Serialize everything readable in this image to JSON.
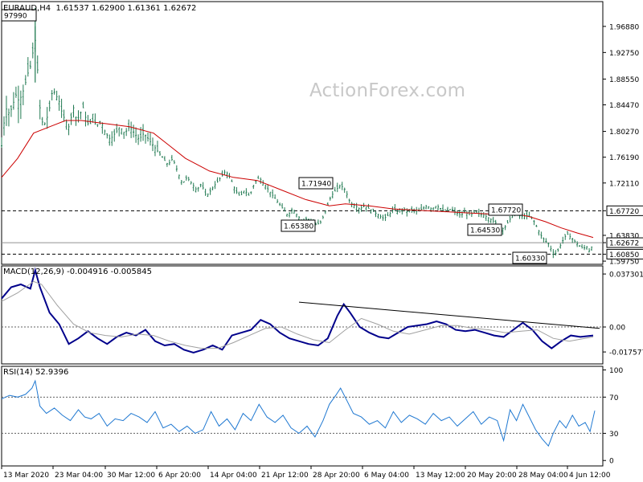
{
  "header": {
    "symbol": "EURAUD,H4",
    "ohlc": "1.61537 1.62900 1.61361 1.62672",
    "macd": "MACD(12,26,9) -0.004916 -0.005845",
    "rsi": "RSI(14) 52.9396"
  },
  "watermark": "ActionForex.com",
  "chart_data": [
    {
      "type": "candlestick",
      "title": "EURAUD,H4",
      "y_ticks": [
        "1.96880",
        "1.92750",
        "1.88550",
        "1.84470",
        "1.80270",
        "1.76190",
        "1.72110",
        "1.67720",
        "1.63830",
        "1.62672",
        "1.60850",
        "1.59750"
      ],
      "ylim": [
        1.5925,
        2.008
      ],
      "current_price": "1.62672",
      "levels": [
        {
          "value": 1.6772,
          "label": "1.67720",
          "style": "dashed"
        },
        {
          "value": 1.6085,
          "label": "1.60850",
          "style": "dashed"
        },
        {
          "value": 1.62672,
          "label": "1.62672",
          "style": "solid"
        }
      ],
      "annotations": [
        {
          "label": "97990",
          "value": 1.9799,
          "x": "13 Mar 2020"
        },
        {
          "label": "1.71940",
          "value": 1.7194,
          "x": "30 Apr 2020"
        },
        {
          "label": "1.65380",
          "value": 1.6538,
          "x": "27 Apr 2020"
        },
        {
          "label": "1.67720",
          "value": 1.6772,
          "x": "28 May 2020"
        },
        {
          "label": "1.64530",
          "value": 1.6453,
          "x": "27 May 2020"
        },
        {
          "label": "1.60330",
          "value": 1.6033,
          "x": "1 Jun 2020"
        }
      ],
      "price_path": [
        [
          0,
          1.78
        ],
        [
          5,
          1.84
        ],
        [
          10,
          1.83
        ],
        [
          18,
          1.86
        ],
        [
          22,
          1.85
        ],
        [
          28,
          1.87
        ],
        [
          34,
          1.9
        ],
        [
          38,
          1.91
        ],
        [
          41,
          1.96
        ],
        [
          44,
          1.92
        ],
        [
          48,
          1.84
        ],
        [
          52,
          1.81
        ],
        [
          56,
          1.82
        ],
        [
          60,
          1.84
        ],
        [
          64,
          1.87
        ],
        [
          68,
          1.86
        ],
        [
          72,
          1.85
        ],
        [
          76,
          1.83
        ],
        [
          80,
          1.82
        ],
        [
          84,
          1.81
        ],
        [
          90,
          1.84
        ],
        [
          94,
          1.82
        ],
        [
          98,
          1.83
        ],
        [
          102,
          1.84
        ],
        [
          106,
          1.82
        ],
        [
          110,
          1.81
        ],
        [
          114,
          1.83
        ],
        [
          118,
          1.81
        ],
        [
          124,
          1.82
        ],
        [
          130,
          1.8
        ],
        [
          136,
          1.79
        ],
        [
          142,
          1.8
        ],
        [
          148,
          1.81
        ],
        [
          154,
          1.8
        ],
        [
          160,
          1.81
        ],
        [
          166,
          1.8
        ],
        [
          172,
          1.79
        ],
        [
          178,
          1.8
        ],
        [
          184,
          1.79
        ],
        [
          190,
          1.78
        ],
        [
          196,
          1.77
        ],
        [
          202,
          1.76
        ],
        [
          208,
          1.75
        ],
        [
          214,
          1.76
        ],
        [
          220,
          1.74
        ],
        [
          226,
          1.72
        ],
        [
          232,
          1.73
        ],
        [
          238,
          1.72
        ],
        [
          244,
          1.71
        ],
        [
          250,
          1.72
        ],
        [
          256,
          1.7
        ],
        [
          262,
          1.71
        ],
        [
          268,
          1.72
        ],
        [
          274,
          1.73
        ],
        [
          280,
          1.74
        ],
        [
          286,
          1.73
        ],
        [
          292,
          1.71
        ],
        [
          298,
          1.7
        ],
        [
          304,
          1.71
        ],
        [
          310,
          1.7
        ],
        [
          316,
          1.72
        ],
        [
          322,
          1.73
        ],
        [
          328,
          1.72
        ],
        [
          334,
          1.71
        ],
        [
          340,
          1.7
        ],
        [
          346,
          1.69
        ],
        [
          352,
          1.68
        ],
        [
          358,
          1.67
        ],
        [
          364,
          1.68
        ],
        [
          370,
          1.67
        ],
        [
          376,
          1.66
        ],
        [
          382,
          1.665
        ],
        [
          388,
          1.66
        ],
        [
          394,
          1.655
        ],
        [
          400,
          1.66
        ],
        [
          406,
          1.68
        ],
        [
          412,
          1.7
        ],
        [
          418,
          1.71
        ],
        [
          424,
          1.718
        ],
        [
          430,
          1.71
        ],
        [
          436,
          1.69
        ],
        [
          442,
          1.685
        ],
        [
          448,
          1.68
        ],
        [
          454,
          1.685
        ],
        [
          460,
          1.68
        ],
        [
          466,
          1.675
        ],
        [
          472,
          1.67
        ],
        [
          478,
          1.665
        ],
        [
          484,
          1.67
        ],
        [
          490,
          1.68
        ],
        [
          496,
          1.675
        ],
        [
          502,
          1.68
        ],
        [
          508,
          1.675
        ],
        [
          514,
          1.68
        ],
        [
          520,
          1.675
        ],
        [
          526,
          1.68
        ],
        [
          532,
          1.685
        ],
        [
          538,
          1.68
        ],
        [
          544,
          1.685
        ],
        [
          550,
          1.68
        ],
        [
          556,
          1.675
        ],
        [
          562,
          1.68
        ],
        [
          568,
          1.675
        ],
        [
          574,
          1.67
        ],
        [
          580,
          1.675
        ],
        [
          586,
          1.67
        ],
        [
          592,
          1.675
        ],
        [
          598,
          1.672
        ],
        [
          604,
          1.67
        ],
        [
          610,
          1.665
        ],
        [
          616,
          1.66
        ],
        [
          622,
          1.655
        ],
        [
          628,
          1.648
        ],
        [
          634,
          1.66
        ],
        [
          640,
          1.672
        ],
        [
          646,
          1.67
        ],
        [
          652,
          1.668
        ],
        [
          658,
          1.67
        ],
        [
          664,
          1.665
        ],
        [
          668,
          1.655
        ],
        [
          672,
          1.645
        ],
        [
          676,
          1.635
        ],
        [
          680,
          1.63
        ],
        [
          684,
          1.625
        ],
        [
          688,
          1.615
        ],
        [
          692,
          1.608
        ],
        [
          696,
          1.615
        ],
        [
          700,
          1.625
        ],
        [
          704,
          1.635
        ],
        [
          708,
          1.64
        ],
        [
          712,
          1.635
        ],
        [
          716,
          1.63
        ],
        [
          720,
          1.625
        ],
        [
          724,
          1.62
        ],
        [
          728,
          1.618
        ],
        [
          732,
          1.62
        ],
        [
          736,
          1.612
        ],
        [
          740,
          1.627
        ]
      ],
      "ma_path": [
        [
          0,
          1.73
        ],
        [
          20,
          1.76
        ],
        [
          40,
          1.8
        ],
        [
          60,
          1.81
        ],
        [
          80,
          1.82
        ],
        [
          100,
          1.82
        ],
        [
          130,
          1.815
        ],
        [
          160,
          1.81
        ],
        [
          190,
          1.8
        ],
        [
          210,
          1.78
        ],
        [
          230,
          1.76
        ],
        [
          260,
          1.74
        ],
        [
          290,
          1.73
        ],
        [
          320,
          1.725
        ],
        [
          350,
          1.71
        ],
        [
          380,
          1.695
        ],
        [
          410,
          1.685
        ],
        [
          430,
          1.688
        ],
        [
          460,
          1.685
        ],
        [
          490,
          1.68
        ],
        [
          520,
          1.678
        ],
        [
          550,
          1.676
        ],
        [
          580,
          1.674
        ],
        [
          610,
          1.672
        ],
        [
          640,
          1.673
        ],
        [
          660,
          1.668
        ],
        [
          680,
          1.66
        ],
        [
          700,
          1.65
        ],
        [
          720,
          1.642
        ],
        [
          740,
          1.635
        ]
      ]
    },
    {
      "type": "line",
      "title": "MACD(12,26,9)",
      "y_ticks": [
        "0.037301",
        "0.00",
        "-0.017577"
      ],
      "ylim": [
        -0.026,
        0.043
      ],
      "series": [
        {
          "name": "MACD",
          "x": [
            0,
            12,
            24,
            36,
            42,
            48,
            60,
            72,
            84,
            96,
            108,
            120,
            132,
            144,
            156,
            168,
            180,
            192,
            204,
            216,
            228,
            240,
            252,
            264,
            276,
            288,
            300,
            312,
            324,
            336,
            348,
            360,
            372,
            384,
            396,
            408,
            420,
            428,
            436,
            448,
            460,
            472,
            484,
            496,
            508,
            520,
            532,
            544,
            556,
            568,
            580,
            592,
            604,
            616,
            628,
            640,
            652,
            664,
            676,
            688,
            700,
            712,
            724,
            740
          ],
          "values": [
            0.02,
            0.028,
            0.03,
            0.027,
            0.04,
            0.028,
            0.01,
            0.002,
            -0.012,
            -0.008,
            -0.003,
            -0.008,
            -0.012,
            -0.007,
            -0.004,
            -0.006,
            -0.002,
            -0.01,
            -0.013,
            -0.012,
            -0.016,
            -0.018,
            -0.016,
            -0.013,
            -0.016,
            -0.006,
            -0.004,
            -0.002,
            0.005,
            0.002,
            -0.004,
            -0.008,
            -0.01,
            -0.012,
            -0.013,
            -0.008,
            0.008,
            0.016,
            0.01,
            0.0,
            -0.004,
            -0.007,
            -0.008,
            -0.004,
            0.0,
            0.001,
            0.002,
            0.004,
            0.002,
            -0.002,
            -0.003,
            -0.002,
            -0.004,
            -0.006,
            -0.007,
            -0.002,
            0.003,
            -0.002,
            -0.01,
            -0.015,
            -0.01,
            -0.006,
            -0.007,
            -0.006
          ]
        },
        {
          "name": "Signal",
          "x": [
            0,
            20,
            40,
            50,
            70,
            90,
            110,
            130,
            150,
            170,
            190,
            210,
            230,
            250,
            270,
            290,
            310,
            330,
            350,
            370,
            390,
            410,
            430,
            450,
            470,
            490,
            510,
            530,
            550,
            570,
            590,
            610,
            630,
            650,
            670,
            690,
            710,
            740
          ],
          "values": [
            0.018,
            0.024,
            0.032,
            0.03,
            0.015,
            0.002,
            -0.004,
            -0.006,
            -0.007,
            -0.005,
            -0.006,
            -0.01,
            -0.013,
            -0.015,
            -0.015,
            -0.011,
            -0.006,
            -0.001,
            0.0,
            -0.005,
            -0.009,
            -0.011,
            -0.002,
            0.006,
            0.002,
            -0.003,
            -0.005,
            -0.002,
            0.001,
            0.001,
            -0.001,
            -0.002,
            -0.004,
            -0.003,
            -0.002,
            -0.008,
            -0.01,
            -0.007
          ]
        }
      ],
      "trendline": [
        [
          372,
          0.0175
        ],
        [
          748,
          -0.001
        ]
      ]
    },
    {
      "type": "line",
      "title": "RSI(14)",
      "y_ticks": [
        "100",
        "70",
        "30",
        "0"
      ],
      "ylim": [
        -6,
        104
      ],
      "levels": [
        70,
        30
      ],
      "series": [
        {
          "name": "RSI",
          "x": [
            0,
            10,
            20,
            30,
            38,
            42,
            48,
            56,
            66,
            76,
            86,
            96,
            104,
            112,
            122,
            132,
            142,
            152,
            162,
            172,
            182,
            192,
            202,
            212,
            222,
            232,
            242,
            252,
            262,
            272,
            282,
            292,
            302,
            312,
            322,
            332,
            342,
            352,
            362,
            372,
            382,
            392,
            402,
            410,
            418,
            424,
            432,
            440,
            450,
            460,
            470,
            480,
            490,
            500,
            510,
            520,
            530,
            540,
            550,
            560,
            570,
            580,
            590,
            600,
            610,
            620,
            628,
            636,
            644,
            652,
            660,
            668,
            676,
            684,
            690,
            698,
            706,
            714,
            722,
            730,
            736,
            742
          ],
          "values": [
            68,
            72,
            70,
            73,
            80,
            88,
            60,
            52,
            58,
            50,
            44,
            56,
            48,
            46,
            52,
            38,
            46,
            44,
            52,
            48,
            42,
            54,
            36,
            40,
            32,
            38,
            30,
            34,
            54,
            38,
            46,
            34,
            52,
            44,
            62,
            48,
            42,
            50,
            36,
            30,
            38,
            26,
            44,
            62,
            72,
            80,
            66,
            52,
            48,
            40,
            44,
            36,
            54,
            42,
            50,
            46,
            40,
            52,
            44,
            48,
            38,
            46,
            54,
            40,
            48,
            44,
            22,
            56,
            44,
            62,
            48,
            34,
            24,
            16,
            30,
            44,
            36,
            50,
            38,
            42,
            32,
            55
          ]
        }
      ]
    }
  ],
  "x_labels": [
    "13 Mar 2020",
    "23 Mar 04:00",
    "30 Mar 12:00",
    "6 Apr 20:00",
    "14 Apr 04:00",
    "21 Apr 12:00",
    "28 Apr 20:00",
    "6 May 04:00",
    "13 May 12:00",
    "20 May 20:00",
    "28 May 04:00",
    "4 Jun 12:00"
  ],
  "colors": {
    "candles": "#217a52",
    "ma": "#cc0000",
    "macd": "#00008b",
    "signal": "#a0a0a0",
    "rsi": "#1f78d1",
    "grid_line": "#606060",
    "trendline": "#000000"
  }
}
